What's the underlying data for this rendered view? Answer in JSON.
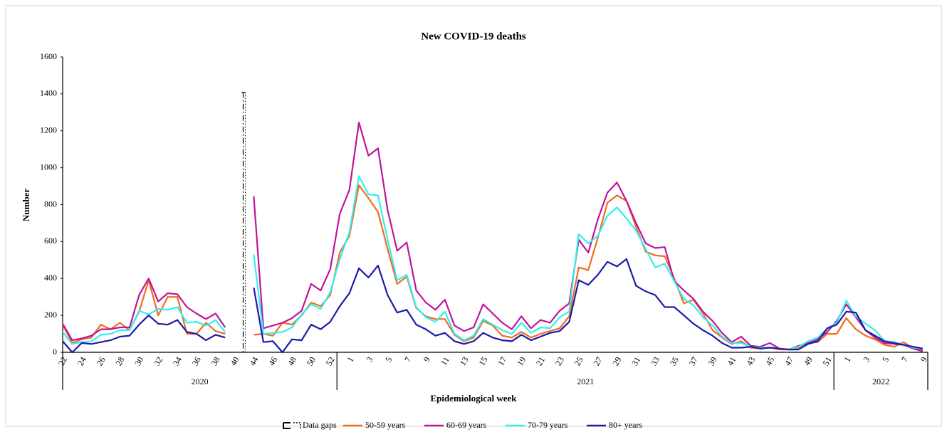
{
  "chart_data": {
    "type": "line",
    "title": "New COVID-19 deaths",
    "xlabel": "Epidemiological week",
    "ylabel": "Number",
    "ylim": [
      0,
      1600
    ],
    "yticks": [
      0,
      200,
      400,
      600,
      800,
      1000,
      1200,
      1400,
      1600
    ],
    "x_groups": [
      "2020",
      "2021",
      "2022"
    ],
    "gap_label": "Data gaps",
    "legend": "bottom",
    "categories": [
      "22",
      null,
      "24",
      null,
      "26",
      null,
      "28",
      null,
      "30",
      null,
      "32",
      null,
      "34",
      null,
      "36",
      null,
      "38",
      null,
      "40",
      null,
      "44",
      null,
      "46",
      null,
      "48",
      null,
      "50",
      null,
      "52",
      null,
      "1",
      null,
      "3",
      null,
      "5",
      null,
      "7",
      null,
      "9",
      null,
      "11",
      null,
      "13",
      null,
      "15",
      null,
      "17",
      null,
      "19",
      null,
      "21",
      null,
      "23",
      null,
      "25",
      null,
      "27",
      null,
      "29",
      null,
      "31",
      null,
      "33",
      null,
      "35",
      null,
      "37",
      null,
      "39",
      null,
      "41",
      null,
      "43",
      null,
      "45",
      null,
      "47",
      null,
      "49",
      null,
      "51",
      null,
      "1",
      null,
      "3",
      null,
      "5",
      null,
      "7",
      null,
      "9"
    ],
    "series": [
      {
        "name": "50-59 years",
        "color": "#f26b1d",
        "values": [
          150,
          50,
          70,
          80,
          150,
          125,
          160,
          120,
          220,
          390,
          200,
          300,
          300,
          100,
          100,
          160,
          115,
          100,
          null,
          null,
          95,
          100,
          90,
          160,
          150,
          200,
          270,
          250,
          310,
          540,
          630,
          905,
          835,
          760,
          560,
          370,
          410,
          240,
          195,
          180,
          180,
          95,
          60,
          80,
          170,
          145,
          90,
          80,
          110,
          80,
          100,
          115,
          130,
          195,
          460,
          445,
          620,
          810,
          850,
          820,
          680,
          545,
          525,
          520,
          400,
          265,
          285,
          210,
          120,
          80,
          45,
          60,
          25,
          20,
          25,
          15,
          15,
          25,
          50,
          55,
          100,
          100,
          185,
          125,
          90,
          70,
          40,
          30,
          55,
          20,
          15
        ]
      },
      {
        "name": "60-69 years",
        "color": "#c0139b",
        "values": [
          155,
          65,
          75,
          90,
          125,
          125,
          135,
          135,
          310,
          400,
          275,
          320,
          315,
          245,
          210,
          180,
          210,
          135,
          null,
          null,
          845,
          130,
          145,
          160,
          185,
          225,
          370,
          335,
          450,
          750,
          880,
          1245,
          1065,
          1105,
          770,
          550,
          595,
          335,
          270,
          230,
          285,
          145,
          115,
          135,
          260,
          210,
          160,
          125,
          195,
          130,
          175,
          160,
          225,
          265,
          610,
          540,
          720,
          865,
          920,
          820,
          700,
          590,
          565,
          570,
          385,
          335,
          290,
          220,
          170,
          105,
          55,
          85,
          35,
          30,
          50,
          20,
          15,
          35,
          50,
          70,
          110,
          170,
          260,
          190,
          120,
          80,
          50,
          45,
          40,
          20,
          5
        ]
      },
      {
        "name": "70-79 years",
        "color": "#2ff0f0",
        "values": [
          110,
          45,
          55,
          60,
          95,
          100,
          120,
          120,
          225,
          205,
          235,
          230,
          245,
          160,
          165,
          145,
          175,
          110,
          null,
          null,
          530,
          100,
          105,
          110,
          135,
          205,
          260,
          235,
          325,
          505,
          650,
          955,
          855,
          850,
          610,
          390,
          420,
          245,
          190,
          165,
          220,
          100,
          65,
          90,
          180,
          150,
          120,
          100,
          160,
          105,
          135,
          130,
          190,
          220,
          640,
          590,
          630,
          740,
          785,
          725,
          660,
          560,
          460,
          480,
          385,
          290,
          255,
          190,
          145,
          85,
          50,
          50,
          30,
          25,
          25,
          20,
          15,
          30,
          60,
          80,
          130,
          160,
          280,
          195,
          155,
          120,
          60,
          55,
          40,
          25,
          20
        ]
      },
      {
        "name": "80+ years",
        "color": "#1a1aa8",
        "values": [
          60,
          0,
          50,
          45,
          55,
          65,
          85,
          90,
          150,
          200,
          155,
          150,
          175,
          110,
          100,
          65,
          95,
          80,
          null,
          null,
          350,
          55,
          60,
          0,
          70,
          65,
          150,
          125,
          165,
          250,
          320,
          455,
          405,
          470,
          310,
          215,
          230,
          150,
          125,
          90,
          105,
          60,
          45,
          60,
          105,
          80,
          65,
          60,
          95,
          65,
          85,
          105,
          115,
          165,
          390,
          365,
          420,
          490,
          465,
          505,
          360,
          330,
          310,
          245,
          245,
          200,
          155,
          120,
          90,
          50,
          25,
          25,
          30,
          20,
          25,
          20,
          15,
          15,
          45,
          60,
          130,
          150,
          220,
          215,
          120,
          90,
          60,
          50,
          40,
          30,
          20
        ]
      }
    ]
  }
}
